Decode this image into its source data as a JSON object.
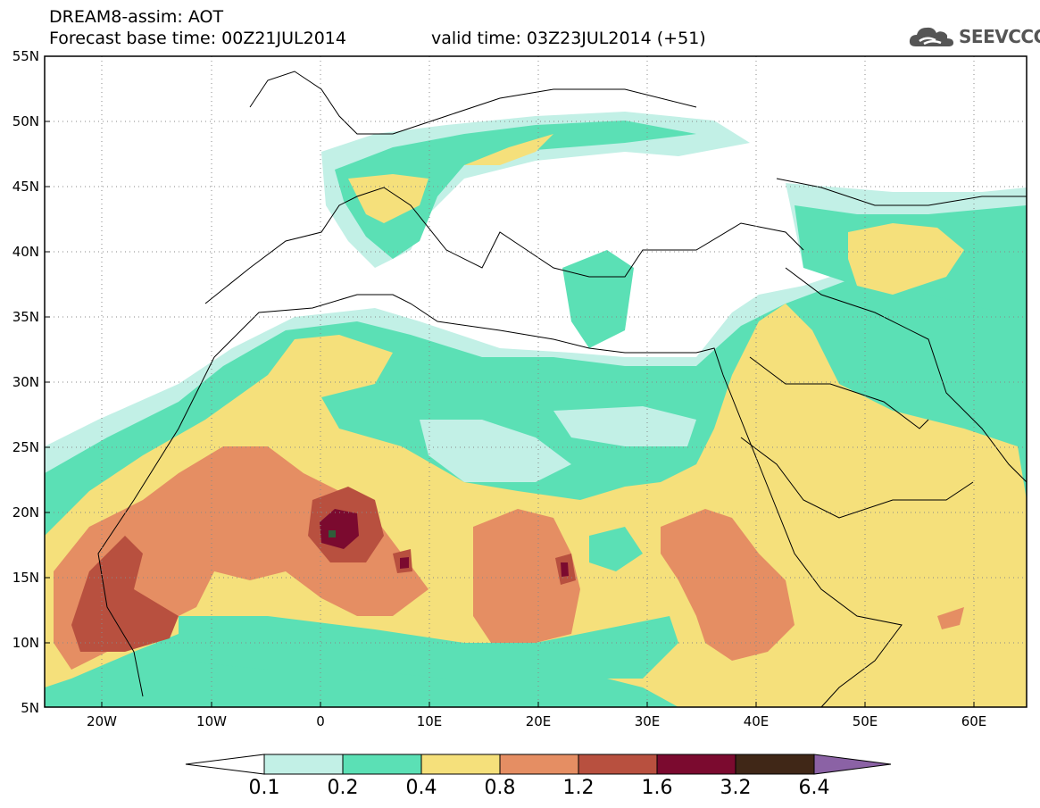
{
  "header": {
    "line1": "DREAM8-assim: AOT",
    "line2": "Forecast base time: 00Z21JUL2014",
    "valid": "valid time: 03Z23JUL2014 (+51)"
  },
  "logo": {
    "text": "SEEVCCC",
    "icon": "cloud-icon"
  },
  "map": {
    "lat_labels": [
      "55N",
      "50N",
      "45N",
      "40N",
      "35N",
      "30N",
      "25N",
      "20N",
      "15N",
      "10N",
      "5N"
    ],
    "lon_labels": [
      "20W",
      "10W",
      "0",
      "10E",
      "20E",
      "30E",
      "40E",
      "50E",
      "60E"
    ],
    "lat_range": [
      5,
      55
    ],
    "lon_range": [
      -25,
      65
    ],
    "grid": "dotted"
  },
  "colorbar": {
    "labels": [
      "0.1",
      "0.2",
      "0.4",
      "0.8",
      "1.2",
      "1.6",
      "3.2",
      "6.4"
    ],
    "colors": [
      "#c2f0e6",
      "#5be0b5",
      "#f5e07b",
      "#e58e63",
      "#b8503f",
      "#7b0a2f",
      "#402717",
      "#8b62a5"
    ]
  }
}
